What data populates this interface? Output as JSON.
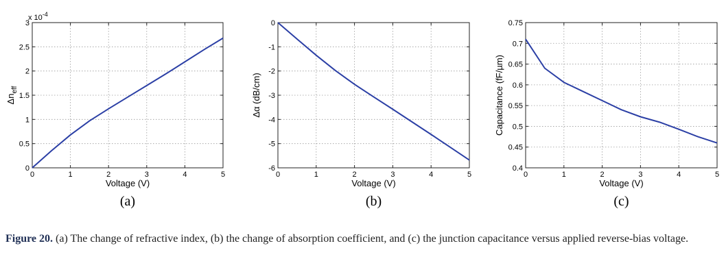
{
  "chart_data": [
    {
      "type": "line",
      "panel_label": "(a)",
      "xlabel": "Voltage (V)",
      "ylabel": "Δn",
      "ylabel_sub": "eff",
      "y_multiplier": "x 10",
      "y_multiplier_exp": "-4",
      "xlim": [
        0,
        5
      ],
      "ylim": [
        0,
        3
      ],
      "xticks": [
        0,
        1,
        2,
        3,
        4,
        5
      ],
      "yticks": [
        0,
        0.5,
        1,
        1.5,
        2,
        2.5,
        3
      ],
      "ytick_labels": [
        "0",
        "0.5",
        "1",
        "1.5",
        "2",
        "2.5",
        "3"
      ],
      "grid": true,
      "series": [
        {
          "color": "#2b3fa5",
          "x": [
            0,
            0.5,
            1,
            1.5,
            2,
            2.5,
            3,
            3.5,
            4,
            4.5,
            5
          ],
          "y": [
            0,
            0.35,
            0.68,
            0.97,
            1.22,
            1.46,
            1.7,
            1.94,
            2.19,
            2.44,
            2.68
          ]
        }
      ]
    },
    {
      "type": "line",
      "panel_label": "(b)",
      "xlabel": "Voltage (V)",
      "ylabel": "Δα (dB/cm)",
      "xlim": [
        0,
        5
      ],
      "ylim": [
        -6,
        0
      ],
      "xticks": [
        0,
        1,
        2,
        3,
        4,
        5
      ],
      "yticks": [
        -6,
        -5,
        -4,
        -3,
        -2,
        -1,
        0
      ],
      "ytick_labels": [
        "-6",
        "-5",
        "-4",
        "-3",
        "-2",
        "-1",
        "0"
      ],
      "grid": true,
      "series": [
        {
          "color": "#2b3fa5",
          "x": [
            0,
            0.5,
            1,
            1.5,
            2,
            2.5,
            3,
            3.5,
            4,
            4.5,
            5
          ],
          "y": [
            0,
            -0.68,
            -1.35,
            -1.98,
            -2.55,
            -3.07,
            -3.58,
            -4.1,
            -4.62,
            -5.15,
            -5.68
          ]
        }
      ]
    },
    {
      "type": "line",
      "panel_label": "(c)",
      "xlabel": "Voltage (V)",
      "ylabel": "Capacitance (fF/µm)",
      "xlim": [
        0,
        5
      ],
      "ylim": [
        0.4,
        0.75
      ],
      "xticks": [
        0,
        1,
        2,
        3,
        4,
        5
      ],
      "yticks": [
        0.4,
        0.45,
        0.5,
        0.55,
        0.6,
        0.65,
        0.7,
        0.75
      ],
      "ytick_labels": [
        "0.4",
        "0.45",
        "0.5",
        "0.55",
        "0.6",
        "0.65",
        "0.7",
        "0.75"
      ],
      "grid": true,
      "series": [
        {
          "color": "#2b3fa5",
          "x": [
            0,
            0.5,
            1,
            1.5,
            2,
            2.5,
            3,
            3.5,
            4,
            4.5,
            5
          ],
          "y": [
            0.71,
            0.64,
            0.606,
            0.584,
            0.562,
            0.54,
            0.523,
            0.51,
            0.493,
            0.475,
            0.46
          ]
        }
      ]
    }
  ],
  "caption": {
    "label": "Figure 20.",
    "text": "(a) The change of refractive index, (b) the change of absorption coefficient, and (c) the junction capacitance versus applied reverse-bias voltage."
  }
}
